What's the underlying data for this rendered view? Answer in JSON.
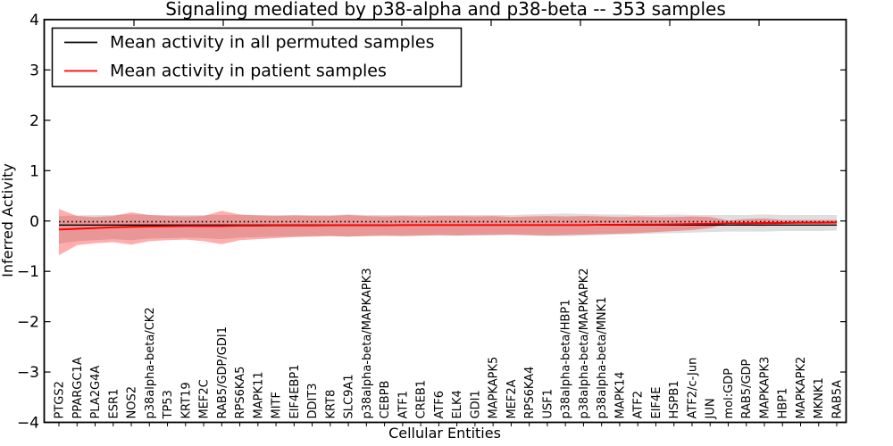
{
  "chart_data": {
    "type": "line",
    "title": "Signaling mediated by p38-alpha and p38-beta -- 353 samples",
    "xlabel": "Cellular Entities",
    "ylabel": "Inferred Activity",
    "ylim": [
      -4,
      4
    ],
    "xgrid": false,
    "ygrid": false,
    "legend_position": "upper left",
    "ytick_values": [
      4,
      3,
      2,
      1,
      0,
      -1,
      -2,
      -3,
      -4
    ],
    "ytick_labels": [
      "4",
      "3",
      "2",
      "1",
      "0",
      "−1",
      "−2",
      "−3",
      "−4"
    ],
    "categories": [
      "PTGS2",
      "PPARGC1A",
      "PLA2G4A",
      "ESR1",
      "NOS2",
      "p38alpha-beta/CK2",
      "TP53",
      "KRT19",
      "MEF2C",
      "RAB5/GDP/GDI1",
      "RPS6KA5",
      "MAPK11",
      "MITF",
      "EIF4EBP1",
      "DDIT3",
      "KRT8",
      "SLC9A1",
      "p38alpha-beta/MAPKAPK3",
      "CEBPB",
      "ATF1",
      "CREB1",
      "ATF6",
      "ELK4",
      "GDI1",
      "MAPKAPK5",
      "MEF2A",
      "RPS6KA4",
      "USF1",
      "p38alpha-beta/HBP1",
      "p38alpha-beta/MAPKAPK2",
      "p38alpha-beta/MNK1",
      "MAPK14",
      "ATF2",
      "EIF4E",
      "HSPB1",
      "ATF2/c-Jun",
      "JUN",
      "mol:GDP",
      "RAB5/GDP",
      "MAPKAPK3",
      "HBP1",
      "MAPKAPK2",
      "MKNK1",
      "RAB5A"
    ],
    "series": [
      {
        "name": "Mean activity in all permuted samples",
        "color": "#000000",
        "values": [
          -0.08,
          -0.08,
          -0.08,
          -0.08,
          -0.08,
          -0.08,
          -0.08,
          -0.08,
          -0.08,
          -0.08,
          -0.08,
          -0.08,
          -0.08,
          -0.08,
          -0.08,
          -0.08,
          -0.08,
          -0.08,
          -0.08,
          -0.08,
          -0.08,
          -0.08,
          -0.08,
          -0.08,
          -0.08,
          -0.08,
          -0.08,
          -0.08,
          -0.08,
          -0.08,
          -0.08,
          -0.08,
          -0.08,
          -0.08,
          -0.08,
          -0.08,
          -0.08,
          -0.08,
          -0.08,
          -0.08,
          -0.08,
          -0.08,
          -0.08,
          -0.08
        ]
      },
      {
        "name": "Mean activity in patient samples",
        "color": "#ff0000",
        "values": [
          -0.17,
          -0.155,
          -0.14,
          -0.125,
          -0.115,
          -0.11,
          -0.105,
          -0.1,
          -0.1,
          -0.1,
          -0.095,
          -0.095,
          -0.09,
          -0.09,
          -0.09,
          -0.085,
          -0.085,
          -0.085,
          -0.085,
          -0.08,
          -0.08,
          -0.08,
          -0.08,
          -0.08,
          -0.08,
          -0.08,
          -0.08,
          -0.08,
          -0.08,
          -0.08,
          -0.075,
          -0.075,
          -0.07,
          -0.07,
          -0.065,
          -0.06,
          -0.055,
          -0.045,
          -0.045,
          -0.04,
          -0.04,
          -0.035,
          -0.035,
          -0.03
        ]
      }
    ],
    "bands": [
      {
        "name": "permuted-samples-range",
        "color": "#888888",
        "opacity": 0.28,
        "upper": [
          0.1,
          0.11,
          0.12,
          0.12,
          0.13,
          0.12,
          0.12,
          0.12,
          0.12,
          0.12,
          0.12,
          0.12,
          0.12,
          0.12,
          0.12,
          0.12,
          0.13,
          0.12,
          0.12,
          0.12,
          0.12,
          0.12,
          0.12,
          0.12,
          0.12,
          0.12,
          0.13,
          0.14,
          0.15,
          0.14,
          0.13,
          0.13,
          0.12,
          0.12,
          0.13,
          0.12,
          0.12,
          0.12,
          0.12,
          0.13,
          0.12,
          0.12,
          0.12,
          0.12
        ],
        "lower": [
          -0.45,
          -0.4,
          -0.38,
          -0.36,
          -0.38,
          -0.35,
          -0.34,
          -0.33,
          -0.34,
          -0.36,
          -0.33,
          -0.32,
          -0.31,
          -0.31,
          -0.3,
          -0.3,
          -0.31,
          -0.3,
          -0.3,
          -0.3,
          -0.29,
          -0.29,
          -0.29,
          -0.29,
          -0.28,
          -0.28,
          -0.29,
          -0.3,
          -0.3,
          -0.29,
          -0.28,
          -0.27,
          -0.26,
          -0.25,
          -0.24,
          -0.23,
          -0.22,
          -0.21,
          -0.21,
          -0.21,
          -0.2,
          -0.2,
          -0.2,
          -0.19
        ]
      },
      {
        "name": "patient-samples-range",
        "color": "#ff0000",
        "opacity": 0.32,
        "upper": [
          0.24,
          0.1,
          0.08,
          0.1,
          0.17,
          0.12,
          0.1,
          0.09,
          0.1,
          0.2,
          0.13,
          0.11,
          0.1,
          0.11,
          0.1,
          0.1,
          0.12,
          0.1,
          0.09,
          0.1,
          0.09,
          0.1,
          0.1,
          0.09,
          0.1,
          0.08,
          0.09,
          0.1,
          0.09,
          0.1,
          0.09,
          0.08,
          0.09,
          0.08,
          0.08,
          0.09,
          0.08,
          0.01,
          0.04,
          0.05,
          0.02,
          0.02,
          0.02,
          0.02
        ],
        "lower": [
          -0.68,
          -0.48,
          -0.44,
          -0.42,
          -0.47,
          -0.4,
          -0.38,
          -0.37,
          -0.4,
          -0.46,
          -0.38,
          -0.36,
          -0.34,
          -0.32,
          -0.31,
          -0.3,
          -0.31,
          -0.3,
          -0.29,
          -0.3,
          -0.29,
          -0.28,
          -0.29,
          -0.28,
          -0.28,
          -0.27,
          -0.28,
          -0.29,
          -0.28,
          -0.27,
          -0.26,
          -0.25,
          -0.24,
          -0.22,
          -0.2,
          -0.18,
          -0.14,
          -0.05,
          -0.09,
          -0.1,
          -0.06,
          -0.06,
          -0.06,
          -0.06
        ]
      }
    ],
    "zero_line": {
      "value": -0.015,
      "color": "#000000",
      "style": "dotted"
    }
  }
}
